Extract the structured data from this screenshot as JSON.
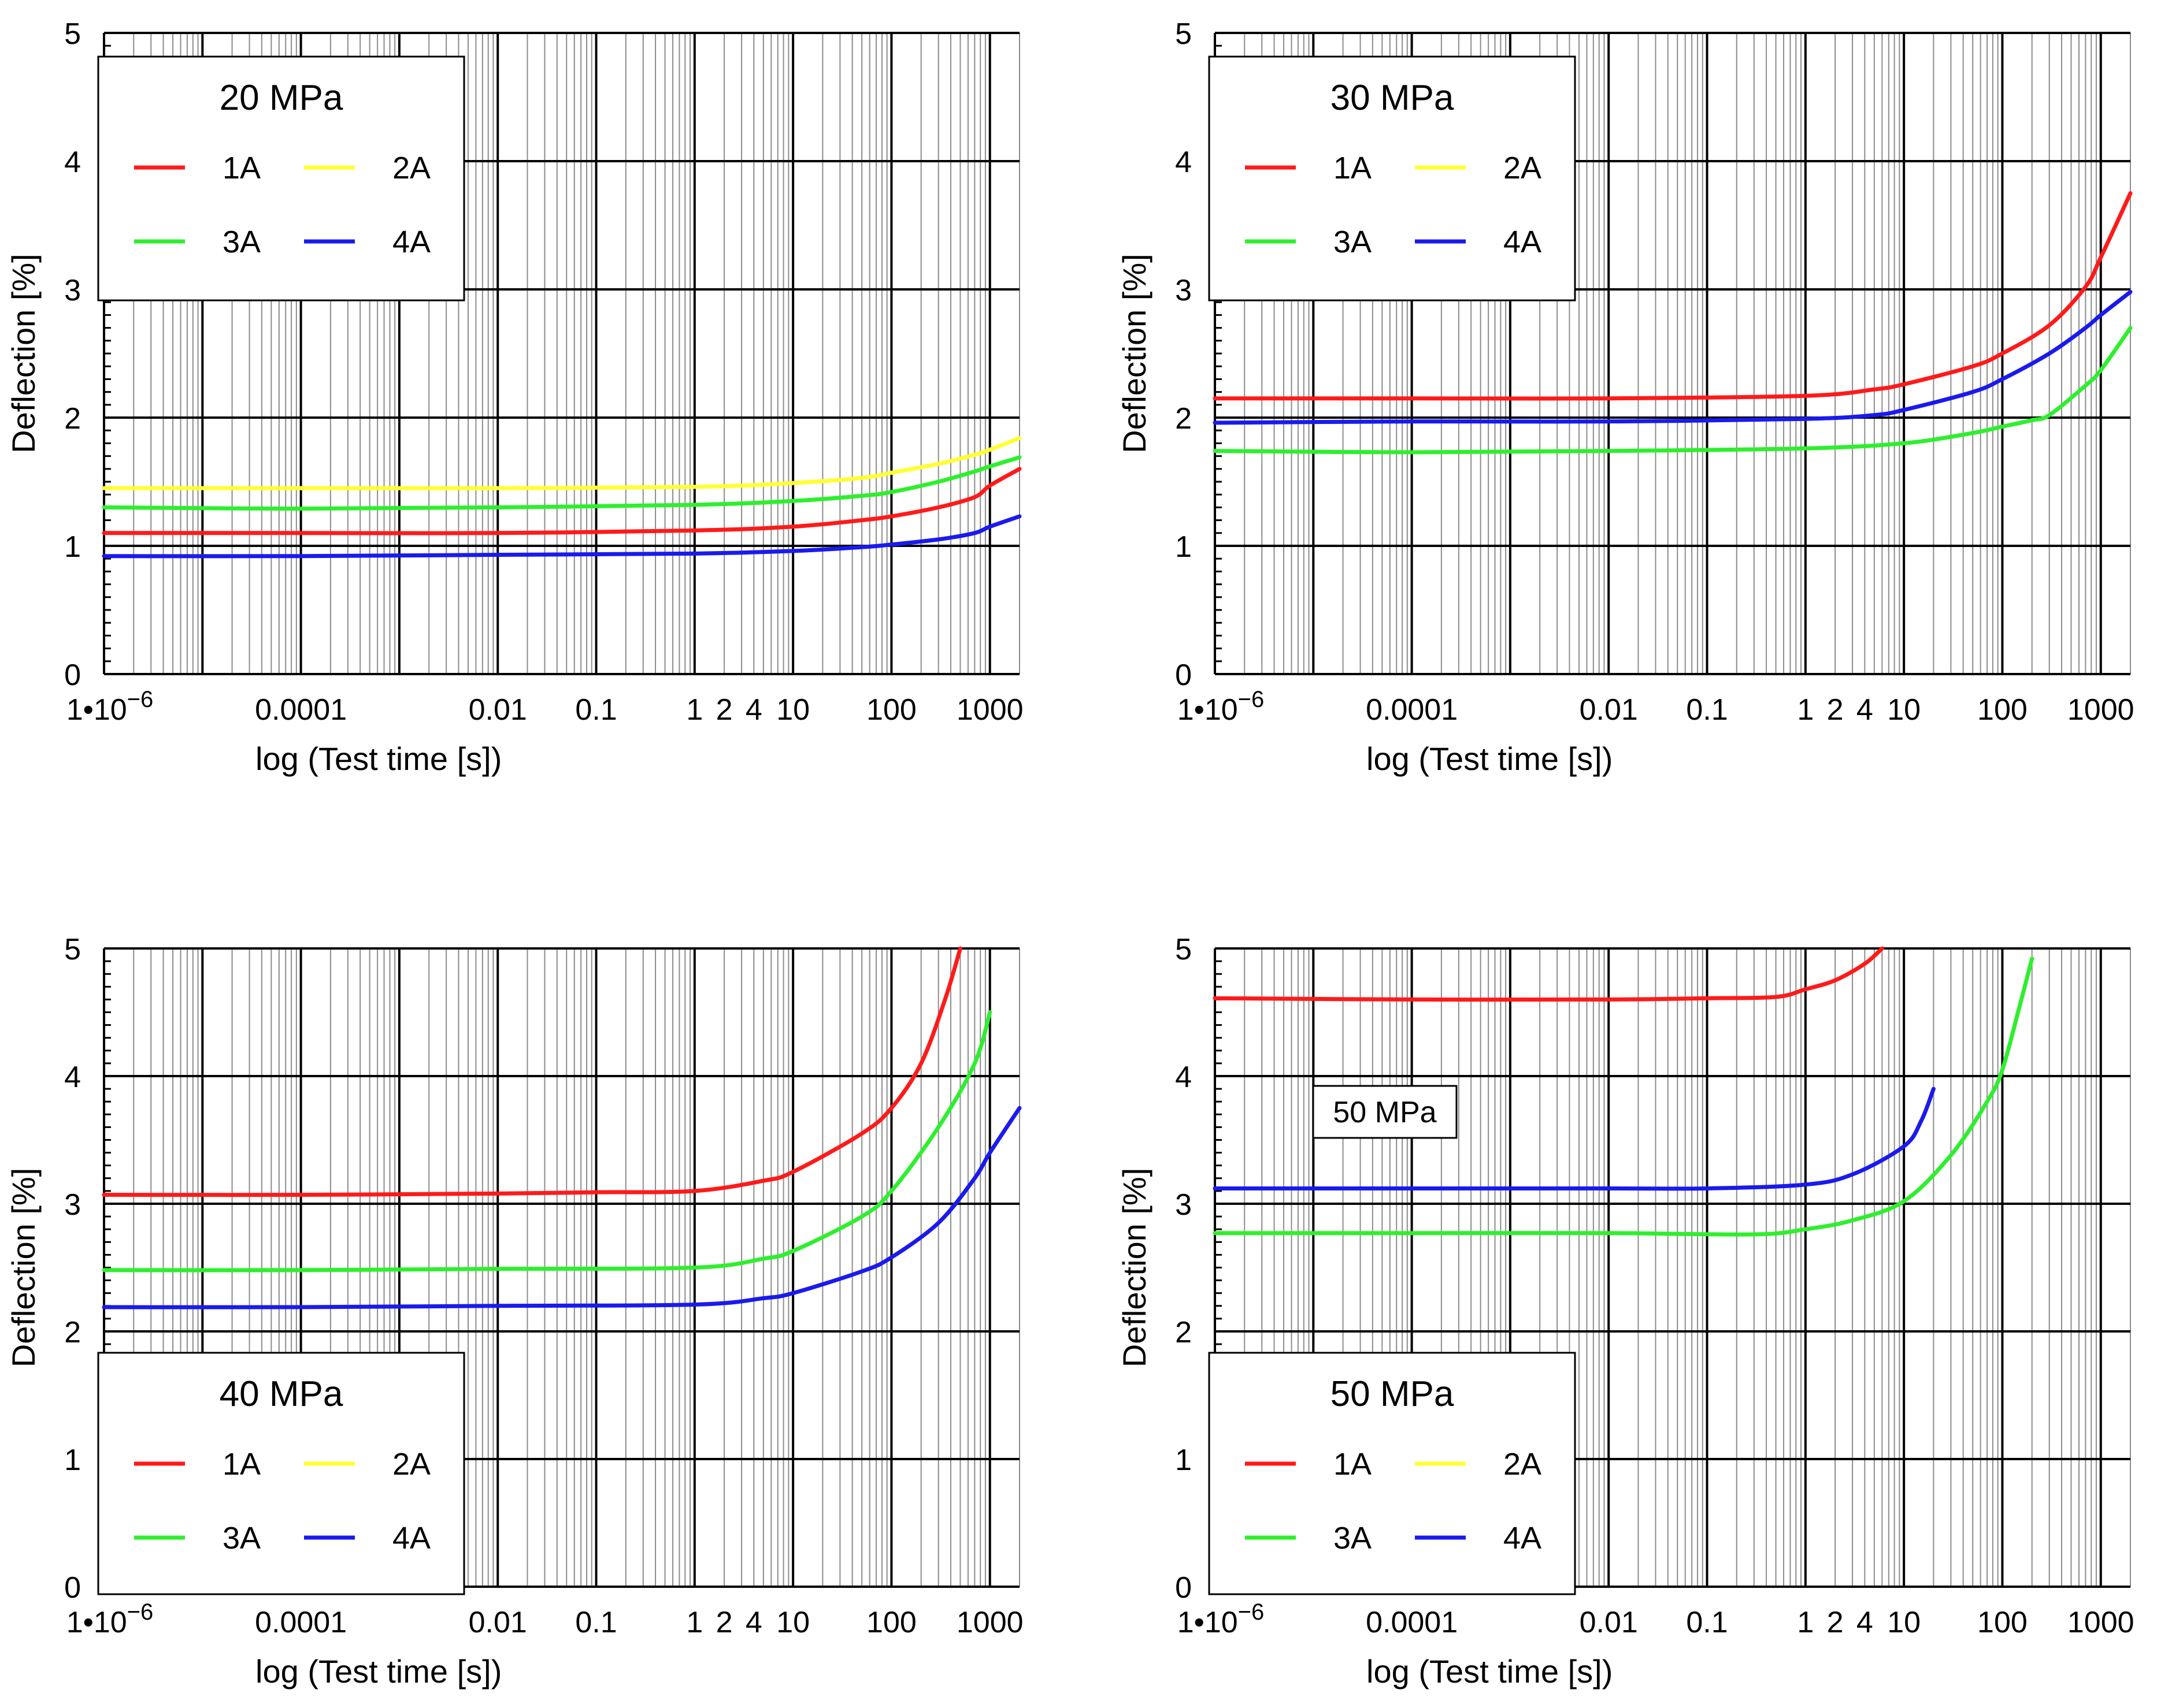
{
  "figure": {
    "layout": "2x2"
  },
  "colors": {
    "1A": "#ff1a1a",
    "2A": "#ffff33",
    "3A": "#2eef2e",
    "4A": "#1a1aee"
  },
  "chart_data": [
    {
      "type": "line",
      "title": "20 MPa",
      "legend_position": "top-left",
      "xlabel": "log (Test time [s])",
      "ylabel": "Deflection [%]",
      "xscale": "log",
      "xlim": [
        1e-06,
        2000
      ],
      "ylim": [
        0,
        5
      ],
      "xticklabels": [
        "1•10",
        "0.0001",
        "0.01",
        "0.1",
        "1",
        "2",
        "4",
        "10",
        "100",
        "1000"
      ],
      "xtick_exponent": "−6",
      "yticklabels": [
        "0",
        "1",
        "2",
        "3",
        "4",
        "5"
      ],
      "series": [
        {
          "name": "1A",
          "color": "#ff1a1a",
          "x": [
            1e-06,
            0.0001,
            0.01,
            1,
            10,
            50,
            100,
            300,
            700,
            1000,
            2000
          ],
          "y": [
            1.1,
            1.1,
            1.1,
            1.12,
            1.15,
            1.2,
            1.23,
            1.3,
            1.38,
            1.47,
            1.6
          ]
        },
        {
          "name": "2A",
          "color": "#ffff33",
          "x": [
            1e-06,
            0.0001,
            0.01,
            1,
            10,
            50,
            100,
            300,
            700,
            1000,
            2000
          ],
          "y": [
            1.45,
            1.45,
            1.45,
            1.46,
            1.49,
            1.53,
            1.57,
            1.64,
            1.71,
            1.75,
            1.84
          ]
        },
        {
          "name": "3A",
          "color": "#2eef2e",
          "x": [
            1e-06,
            0.0001,
            0.01,
            1,
            10,
            50,
            100,
            300,
            700,
            1000,
            2000
          ],
          "y": [
            1.3,
            1.29,
            1.3,
            1.32,
            1.35,
            1.39,
            1.42,
            1.5,
            1.58,
            1.62,
            1.69
          ]
        },
        {
          "name": "4A",
          "color": "#1a1aee",
          "x": [
            1e-06,
            0.0001,
            0.01,
            1,
            10,
            50,
            100,
            300,
            700,
            1000,
            2000
          ],
          "y": [
            0.92,
            0.92,
            0.93,
            0.94,
            0.96,
            0.99,
            1.01,
            1.05,
            1.1,
            1.15,
            1.23
          ]
        }
      ]
    },
    {
      "type": "line",
      "title": "30 MPa",
      "legend_position": "top-left",
      "xlabel": "log (Test time [s])",
      "ylabel": "Deflection [%]",
      "xscale": "log",
      "xlim": [
        1e-06,
        2000
      ],
      "ylim": [
        0,
        5
      ],
      "xticklabels": [
        "1•10",
        "0.0001",
        "0.01",
        "0.1",
        "1",
        "2",
        "4",
        "10",
        "100",
        "1000"
      ],
      "xtick_exponent": "−6",
      "yticklabels": [
        "0",
        "1",
        "2",
        "3",
        "4",
        "5"
      ],
      "series": [
        {
          "name": "1A",
          "color": "#ff1a1a",
          "x": [
            1e-06,
            0.0001,
            0.01,
            1,
            5,
            10,
            50,
            100,
            300,
            700,
            1000,
            2000
          ],
          "y": [
            2.15,
            2.15,
            2.15,
            2.17,
            2.22,
            2.26,
            2.4,
            2.5,
            2.72,
            3.02,
            3.25,
            3.75
          ]
        },
        {
          "name": "3A",
          "color": "#2eef2e",
          "x": [
            1e-06,
            0.0001,
            0.01,
            1,
            10,
            50,
            100,
            200,
            300,
            700,
            1000,
            2000
          ],
          "y": [
            1.74,
            1.73,
            1.74,
            1.76,
            1.8,
            1.88,
            1.93,
            1.98,
            2.02,
            2.25,
            2.37,
            2.7
          ]
        },
        {
          "name": "4A",
          "color": "#1a1aee",
          "x": [
            1e-06,
            0.0001,
            0.01,
            1,
            5,
            10,
            50,
            100,
            300,
            700,
            1000,
            2000
          ],
          "y": [
            1.96,
            1.97,
            1.97,
            1.99,
            2.02,
            2.06,
            2.2,
            2.3,
            2.5,
            2.7,
            2.8,
            2.98
          ]
        }
      ]
    },
    {
      "type": "line",
      "title": "40 MPa",
      "legend_position": "bottom-left",
      "xlabel": "log (Test time [s])",
      "ylabel": "Deflection [%]",
      "xscale": "log",
      "xlim": [
        1e-06,
        2000
      ],
      "ylim": [
        0,
        5
      ],
      "xticklabels": [
        "1•10",
        "0.0001",
        "0.01",
        "0.1",
        "1",
        "2",
        "4",
        "10",
        "100",
        "1000"
      ],
      "xtick_exponent": "−6",
      "yticklabels": [
        "0",
        "1",
        "2",
        "3",
        "4",
        "5"
      ],
      "series": [
        {
          "name": "1A",
          "color": "#ff1a1a",
          "x": [
            1e-06,
            0.0001,
            0.01,
            0.1,
            1,
            5,
            10,
            50,
            100,
            200,
            350,
            500
          ],
          "y": [
            3.07,
            3.07,
            3.08,
            3.09,
            3.1,
            3.18,
            3.25,
            3.55,
            3.75,
            4.1,
            4.6,
            5.0
          ]
        },
        {
          "name": "3A",
          "color": "#2eef2e",
          "x": [
            1e-06,
            0.0001,
            0.01,
            1,
            5,
            10,
            50,
            100,
            300,
            700,
            1000
          ],
          "y": [
            2.48,
            2.48,
            2.49,
            2.5,
            2.57,
            2.63,
            2.9,
            3.1,
            3.6,
            4.1,
            4.5
          ]
        },
        {
          "name": "4A",
          "color": "#1a1aee",
          "x": [
            1e-06,
            0.0001,
            0.01,
            1,
            5,
            10,
            50,
            100,
            300,
            700,
            1000,
            2000
          ],
          "y": [
            2.19,
            2.19,
            2.2,
            2.21,
            2.26,
            2.3,
            2.47,
            2.58,
            2.85,
            3.2,
            3.4,
            3.75
          ]
        }
      ]
    },
    {
      "type": "line",
      "title": "50 MPa",
      "legend_position": "bottom-left",
      "annotation": "50 MPa",
      "xlabel": "log (Test time [s])",
      "ylabel": "Deflection [%]",
      "xscale": "log",
      "xlim": [
        1e-06,
        2000
      ],
      "ylim": [
        0,
        5
      ],
      "xticklabels": [
        "1•10",
        "0.0001",
        "0.01",
        "0.1",
        "1",
        "2",
        "4",
        "10",
        "100",
        "1000"
      ],
      "xtick_exponent": "−6",
      "yticklabels": [
        "0",
        "1",
        "2",
        "3",
        "4",
        "5"
      ],
      "series": [
        {
          "name": "1A",
          "color": "#ff1a1a",
          "x": [
            1e-06,
            0.0001,
            0.01,
            0.1,
            0.5,
            1,
            2,
            4,
            6
          ],
          "y": [
            4.61,
            4.6,
            4.6,
            4.61,
            4.62,
            4.68,
            4.75,
            4.88,
            5.0
          ]
        },
        {
          "name": "3A",
          "color": "#2eef2e",
          "x": [
            1e-06,
            0.0001,
            0.01,
            0.3,
            1,
            3,
            10,
            30,
            70,
            100,
            150,
            200
          ],
          "y": [
            2.77,
            2.77,
            2.77,
            2.76,
            2.8,
            2.87,
            3.02,
            3.38,
            3.8,
            4.05,
            4.55,
            4.92
          ]
        },
        {
          "name": "4A",
          "color": "#1a1aee",
          "x": [
            1e-06,
            0.0001,
            0.01,
            0.1,
            1,
            3,
            10,
            15,
            20
          ],
          "y": [
            3.12,
            3.12,
            3.12,
            3.12,
            3.15,
            3.23,
            3.45,
            3.65,
            3.9
          ]
        }
      ]
    }
  ]
}
